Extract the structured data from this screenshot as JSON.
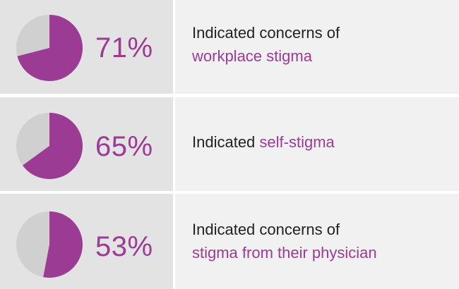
{
  "chart_data": {
    "type": "pie",
    "colors": {
      "highlight": "#9b3b94",
      "remainder": "#d0d0d1"
    },
    "items": [
      {
        "value": 71,
        "label": "71%",
        "text_line1": "Indicated concerns of",
        "text_line2_highlight": "workplace stigma"
      },
      {
        "value": 65,
        "label": "65%",
        "text_line1_prefix": "Indicated ",
        "text_line1_highlight": "self-stigma"
      },
      {
        "value": 53,
        "label": "53%",
        "text_line1": "Indicated concerns of",
        "text_line2_highlight": "stigma from their physician"
      }
    ]
  }
}
